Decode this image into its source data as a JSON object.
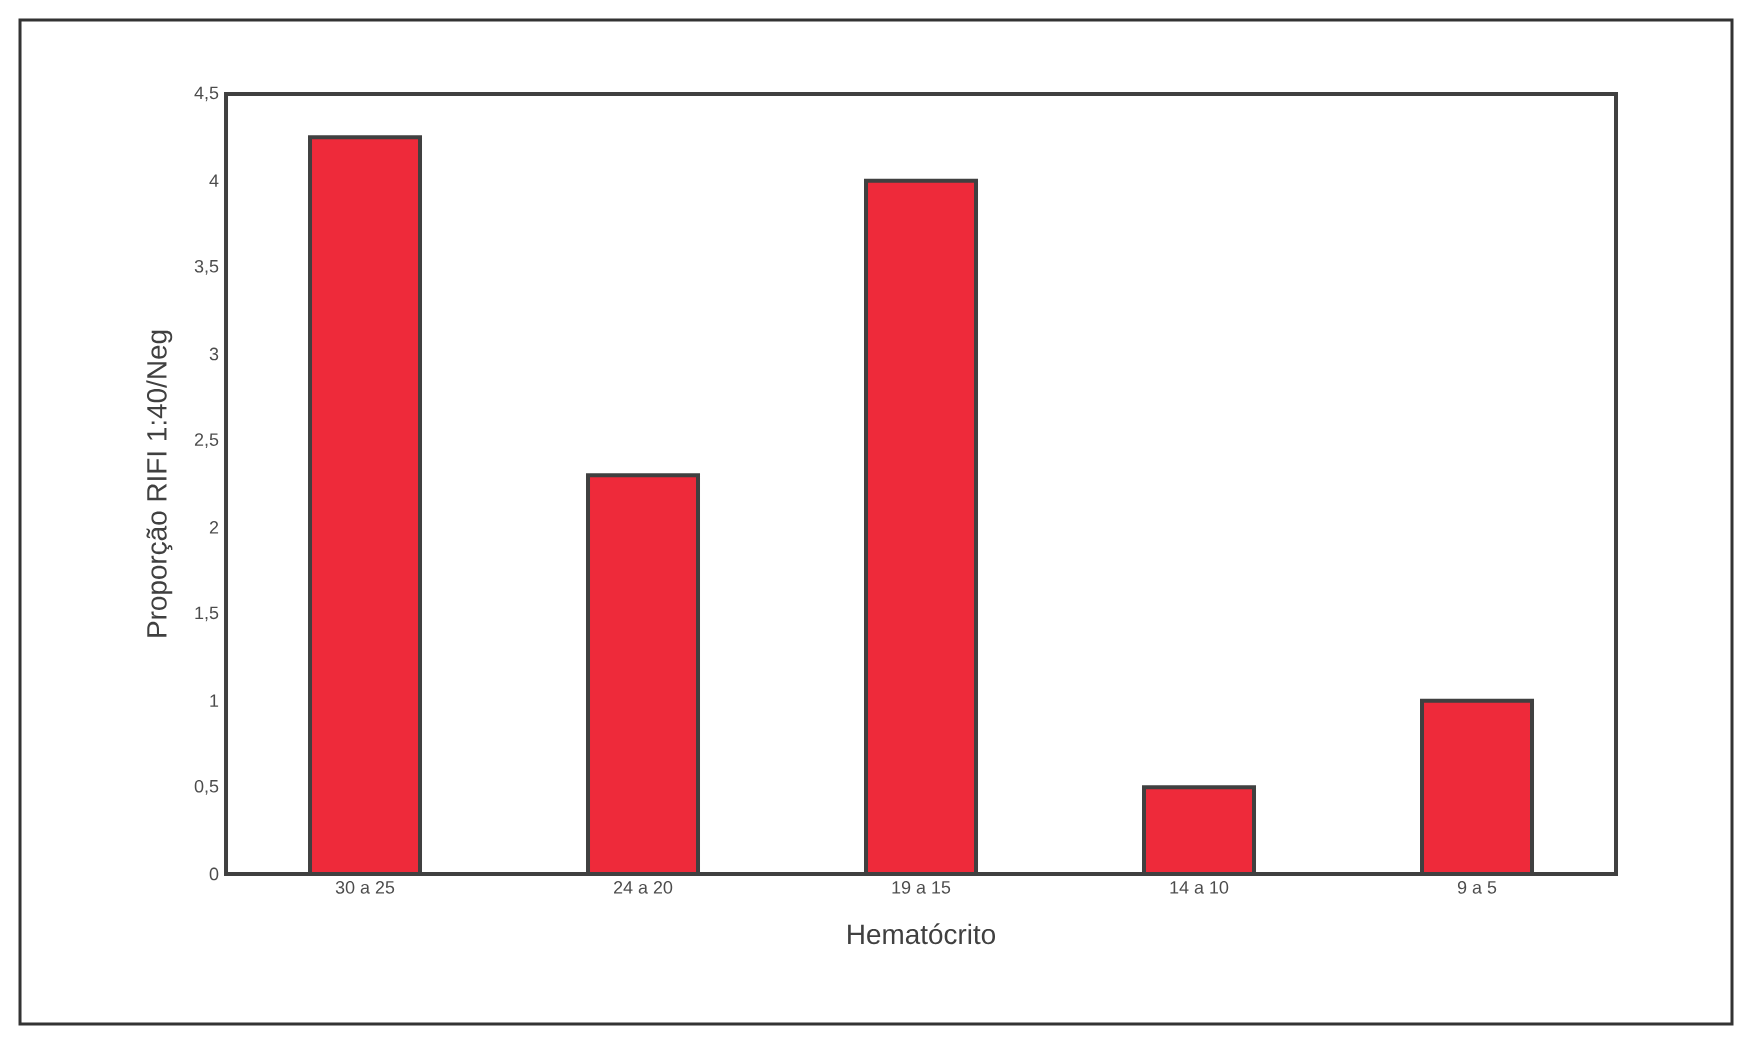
{
  "chart_data": {
    "type": "bar",
    "xlabel": "Hematócrito",
    "ylabel": "Proporção RIFI 1:40/Neg",
    "categories": [
      "30 a 25",
      "24 a 20",
      "19 a 15",
      "14 a 10",
      "9 a 5"
    ],
    "values": [
      4.25,
      2.3,
      4,
      0.5,
      1
    ],
    "color": "#ee2a3a",
    "ylim": [
      0,
      4.5
    ],
    "yticks": [
      0,
      {
        "value": 0.5,
        "label": "0,5"
      },
      1,
      {
        "value": 1.5,
        "label": "1,5"
      },
      2,
      {
        "value": 2.5,
        "label": "2,5"
      },
      3,
      {
        "value": 3.5,
        "label": "3,5"
      },
      4,
      {
        "value": 4.5,
        "label": "4,5"
      }
    ],
    "grid": false
  }
}
